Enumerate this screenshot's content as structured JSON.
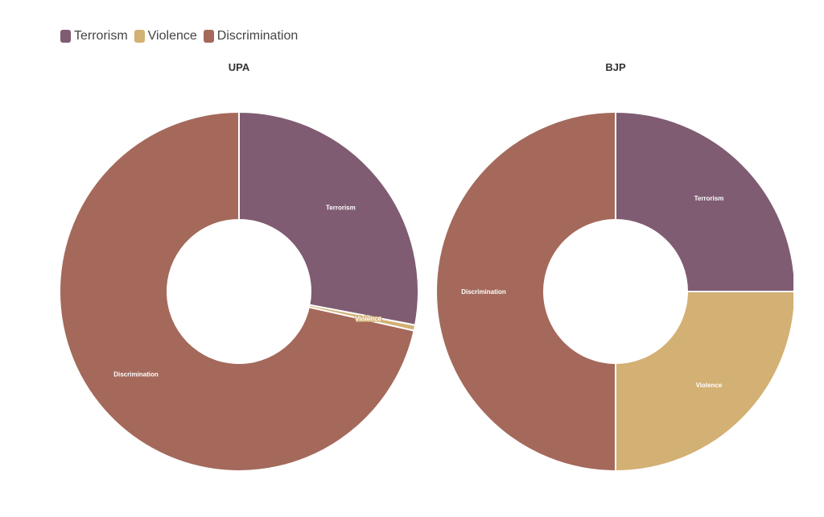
{
  "chart_data": [
    {
      "type": "pie",
      "title": "UPA",
      "categories": [
        "Terrorism",
        "Violence",
        "Discrimination"
      ],
      "values": [
        28,
        0.5,
        71.5
      ],
      "colors": [
        "#7f5c72",
        "#d3b073",
        "#a4695b"
      ]
    },
    {
      "type": "pie",
      "title": "BJP",
      "categories": [
        "Terrorism",
        "Violence",
        "Discrimination"
      ],
      "values": [
        25,
        25,
        50
      ],
      "colors": [
        "#7f5c72",
        "#d3b073",
        "#a4695b"
      ]
    }
  ],
  "legend": {
    "placement": "top-left",
    "items": [
      {
        "label": "Terrorism",
        "color": "#7f5c72"
      },
      {
        "label": "Violence",
        "color": "#d3b073"
      },
      {
        "label": "Discrimination",
        "color": "#a4695b"
      }
    ]
  }
}
